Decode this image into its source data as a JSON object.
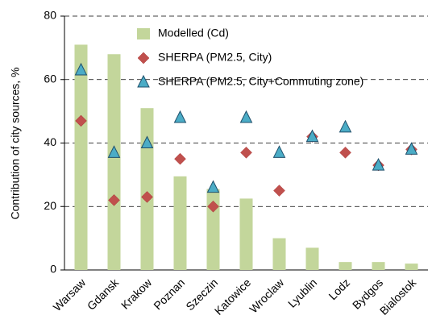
{
  "chart_data": {
    "type": "bar",
    "y_label": "Contribution of city sources, %",
    "categories": [
      "Warsaw",
      "Gdansk",
      "Krakow",
      "Poznan",
      "Szeczin",
      "Katowice",
      "Wroclaw",
      "Lyublin",
      "Lodz",
      "Bydgos",
      "Bialostok"
    ],
    "series": [
      {
        "name": "Modelled (Cd)",
        "type": "bar",
        "color": "#c3d69b",
        "values": [
          71,
          68,
          51,
          29.5,
          25.5,
          22.5,
          10,
          7,
          2.5,
          2.5,
          2
        ]
      },
      {
        "name": "SHERPA (PM2.5, City)",
        "type": "diamond",
        "color": "#c0504d",
        "values": [
          47,
          22,
          23,
          35,
          20,
          37,
          25,
          42,
          37,
          33,
          38
        ]
      },
      {
        "name": "SHERPA (PM2.5, City+Commuting zone)",
        "type": "triangle",
        "color": "#4bacc6",
        "values": [
          63,
          37,
          40,
          48,
          26,
          48,
          37,
          42,
          45,
          33,
          38
        ]
      }
    ],
    "ylim": [
      0,
      80
    ],
    "yticks": [
      0,
      20,
      40,
      60,
      80
    ],
    "grid": true
  }
}
